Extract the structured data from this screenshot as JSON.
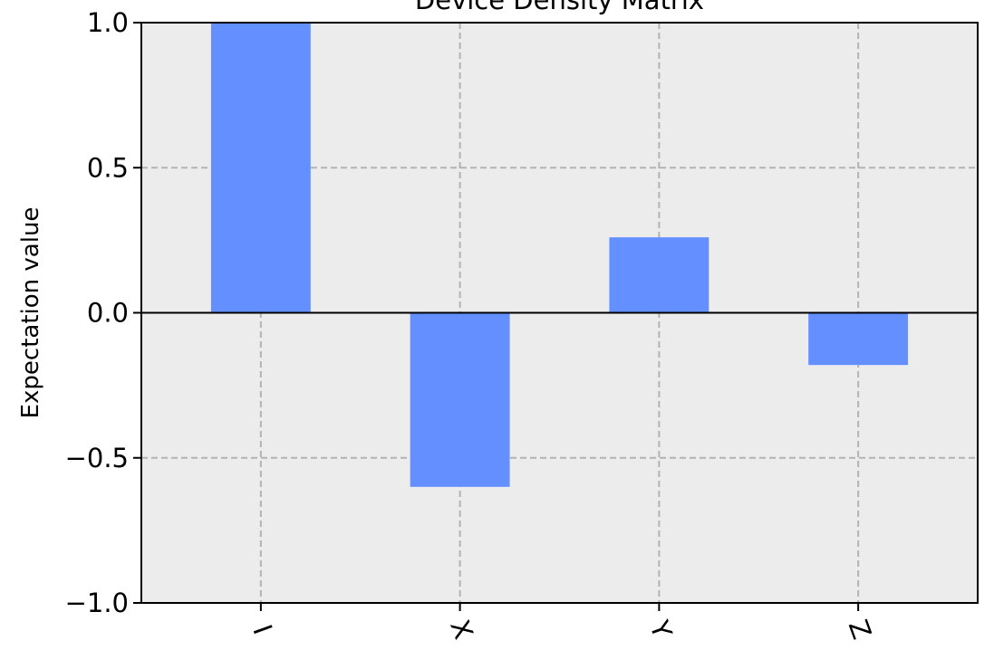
{
  "chart_data": {
    "type": "bar",
    "title": "Device Density Matrix",
    "xlabel": "",
    "ylabel": "Expectation value",
    "categories": [
      "I",
      "X",
      "Y",
      "Z"
    ],
    "values": [
      1.0,
      -0.6,
      0.26,
      -0.18
    ],
    "ylim": [
      -1.0,
      1.0
    ],
    "yticks": [
      "1.0",
      "0.5",
      "0.0",
      "−0.5",
      "−1.0"
    ],
    "ytick_values": [
      1.0,
      0.5,
      0.0,
      -0.5,
      -1.0
    ],
    "grid": true,
    "legend": "none",
    "x_tick_rotation_deg": 70,
    "colors": {
      "bar": "#648fff",
      "plot_background": "#ececec",
      "grid": "#b3b3b3",
      "zero_line": "#000000"
    }
  }
}
